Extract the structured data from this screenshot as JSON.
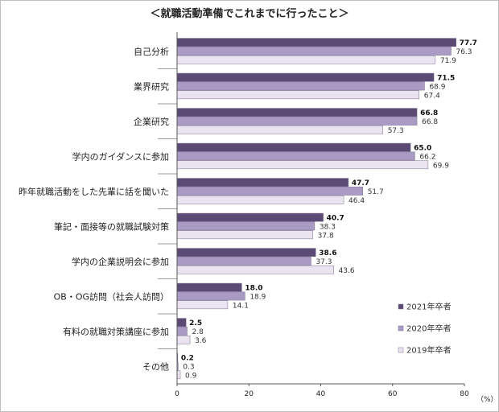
{
  "chart_data": {
    "type": "bar",
    "orientation": "horizontal",
    "title": "＜就職活動準備でこれまでに行ったこと＞",
    "unit_label": "（%）",
    "xlim": [
      0,
      80
    ],
    "ticks": [
      "0",
      "20",
      "40",
      "60",
      "80"
    ],
    "grid": false,
    "legend_position": "right",
    "categories": [
      "自己分析",
      "業界研究",
      "企業研究",
      "学内のガイダンスに参加",
      "昨年就職活動をした先輩に話を聞いた",
      "筆記・面接等の就職試験対策",
      "学内の企業説明会に参加",
      "OB・OG訪問（社会人訪問）",
      "有料の就職対策講座に参加",
      "その他"
    ],
    "series": [
      {
        "name": "2021年卒者",
        "color": "#5b4a74",
        "values": [
          77.7,
          71.5,
          66.8,
          65.0,
          47.7,
          40.7,
          38.6,
          18.0,
          2.5,
          0.2
        ]
      },
      {
        "name": "2020年卒者",
        "color": "#a99bc3",
        "values": [
          76.3,
          68.9,
          66.8,
          66.2,
          51.7,
          38.3,
          37.3,
          18.9,
          2.8,
          0.3
        ]
      },
      {
        "name": "2019年卒者",
        "color": "#e9e4ef",
        "values": [
          71.9,
          67.4,
          57.3,
          69.9,
          46.4,
          37.8,
          43.6,
          14.1,
          3.6,
          0.9
        ]
      }
    ],
    "value_labels": [
      [
        "77.7",
        "71.5",
        "66.8",
        "65.0",
        "47.7",
        "40.7",
        "38.6",
        "18.0",
        "2.5",
        "0.2"
      ],
      [
        "76.3",
        "68.9",
        "66.8",
        "66.2",
        "51.7",
        "38.3",
        "37.3",
        "18.9",
        "2.8",
        "0.3"
      ],
      [
        "71.9",
        "67.4",
        "57.3",
        "69.9",
        "46.4",
        "37.8",
        "43.6",
        "14.1",
        "3.6",
        "0.9"
      ]
    ]
  }
}
